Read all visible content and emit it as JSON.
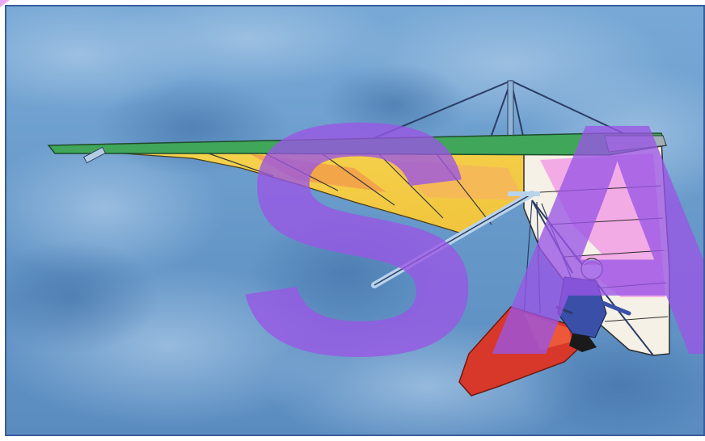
{
  "watermark": {
    "text": "SA"
  },
  "colors": {
    "sky": "#6e9fcd",
    "sky_dark": "#4f7fb3",
    "frame": "#3a5d9c",
    "wing_leading_edge": "#3fa65a",
    "sail_yellow": "#f4d34a",
    "sail_pink": "#f2a6e6",
    "sail_white": "#f6f1e6",
    "harness_red": "#d8382a",
    "pilot_blue": "#3a4fa8",
    "watermark": "#9a56e6"
  },
  "icons": {
    "subject": "hang-glider-illustration",
    "overlay": "watermark-logo"
  }
}
